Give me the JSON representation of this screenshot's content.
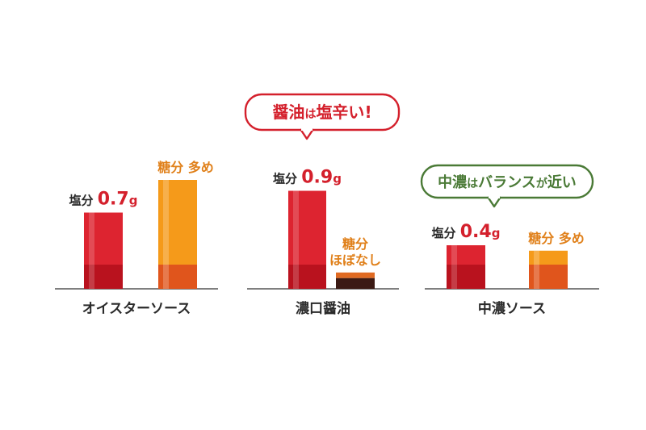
{
  "chart_data": {
    "type": "bar",
    "colors": {
      "salt": "#cf1d2a",
      "sugar": "#f08a12",
      "soy": "#3b1a14",
      "text": "#2a2a2a",
      "sugar_text": "#e0801a",
      "salt_text": "#d4202c",
      "red_callout": "#d4202c",
      "green_callout": "#4a7a36"
    },
    "groups": [
      {
        "name": "オイスターソース",
        "bars": [
          {
            "kind": "salt",
            "value": 0.7,
            "label_prefix": "塩分",
            "label_value": "0.7",
            "label_unit": "g"
          },
          {
            "kind": "sugar",
            "value": 1.0,
            "label_lines": [
              "糖分 多め"
            ]
          }
        ]
      },
      {
        "name": "濃口醤油",
        "callout": {
          "parts": [
            "醤油",
            "は",
            "塩辛い",
            "!"
          ],
          "style": "red"
        },
        "bars": [
          {
            "kind": "salt",
            "value": 0.9,
            "label_prefix": "塩分",
            "label_value": "0.9",
            "label_unit": "g"
          },
          {
            "kind": "soy",
            "value": 0.15,
            "label_lines": [
              "糖分",
              "ほぼなし"
            ]
          }
        ]
      },
      {
        "name": "中濃ソース",
        "callout": {
          "parts": [
            "中濃",
            "は",
            "バランス",
            "が",
            "近い"
          ],
          "style": "green"
        },
        "bars": [
          {
            "kind": "salt",
            "value": 0.4,
            "label_prefix": "塩分",
            "label_value": "0.4",
            "label_unit": "g"
          },
          {
            "kind": "sugar",
            "value": 0.35,
            "label_lines": [
              "糖分 多め"
            ]
          }
        ]
      }
    ]
  }
}
